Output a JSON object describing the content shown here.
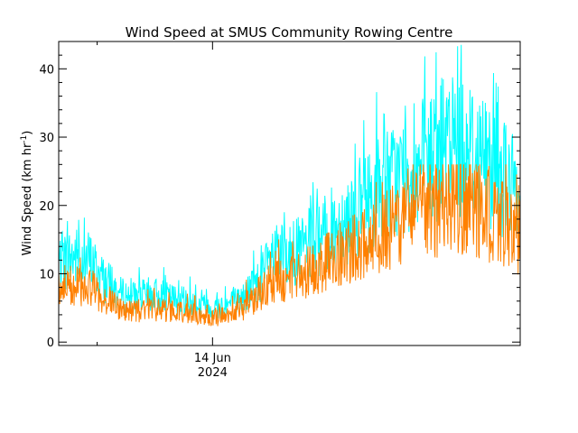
{
  "chart_data": {
    "type": "line",
    "title": "Wind Speed at SMUS Community Rowing Centre",
    "ylabel_main": "Wind Speed (km hr",
    "ylabel_sup": "-1",
    "ylabel_close": ")",
    "xlabel": "",
    "x_tick_labels": [
      {
        "line1": "14 Jun",
        "line2": "2024"
      }
    ],
    "x_unit": "days since start of plotted window",
    "xlim": [
      0,
      3.0
    ],
    "x_tick_major": [
      1.0
    ],
    "x_tick_minor": [
      0.25
    ],
    "ylim": [
      -0.5,
      44.0
    ],
    "y_ticks": [
      0,
      10,
      20,
      30,
      40
    ],
    "y_tick_labels": [
      "0",
      "10",
      "20",
      "30",
      "40"
    ],
    "y_minor_step": 2,
    "grid": false,
    "legend": "none",
    "series": [
      {
        "name": "",
        "color": "#00ffff",
        "x": [
          0.0,
          0.1,
          0.2,
          0.3,
          0.4,
          0.5,
          0.6,
          0.7,
          0.8,
          0.9,
          1.0,
          1.1,
          1.2,
          1.3,
          1.4,
          1.5,
          1.6,
          1.7,
          1.8,
          1.9,
          2.0,
          2.1,
          2.2,
          2.3,
          2.4,
          2.5,
          2.6,
          2.7,
          2.8,
          2.9,
          3.0
        ],
        "values": [
          11.5,
          12.5,
          12.0,
          9.0,
          7.0,
          6.5,
          7.0,
          6.5,
          6.0,
          5.5,
          5.0,
          5.5,
          6.5,
          9.0,
          12.5,
          12.5,
          14.0,
          15.0,
          17.0,
          18.5,
          20.5,
          22.5,
          24.0,
          25.0,
          26.5,
          28.0,
          29.0,
          28.0,
          26.5,
          24.0,
          21.0
        ],
        "peak": 43.5
      },
      {
        "name": "",
        "color": "#ff8000",
        "x": [
          0.0,
          0.1,
          0.2,
          0.3,
          0.4,
          0.5,
          0.6,
          0.7,
          0.8,
          0.9,
          1.0,
          1.1,
          1.2,
          1.3,
          1.4,
          1.5,
          1.6,
          1.7,
          1.8,
          1.9,
          2.0,
          2.1,
          2.2,
          2.3,
          2.4,
          2.5,
          2.6,
          2.7,
          2.8,
          2.9,
          3.0
        ],
        "values": [
          8.0,
          8.5,
          8.0,
          6.5,
          5.0,
          4.5,
          5.0,
          4.5,
          4.5,
          4.0,
          3.5,
          4.0,
          5.0,
          7.0,
          9.0,
          9.0,
          10.0,
          11.0,
          12.5,
          13.5,
          15.0,
          16.0,
          17.0,
          18.0,
          19.0,
          19.5,
          20.0,
          19.5,
          18.5,
          17.0,
          15.5
        ],
        "peak": 26.0
      }
    ]
  }
}
